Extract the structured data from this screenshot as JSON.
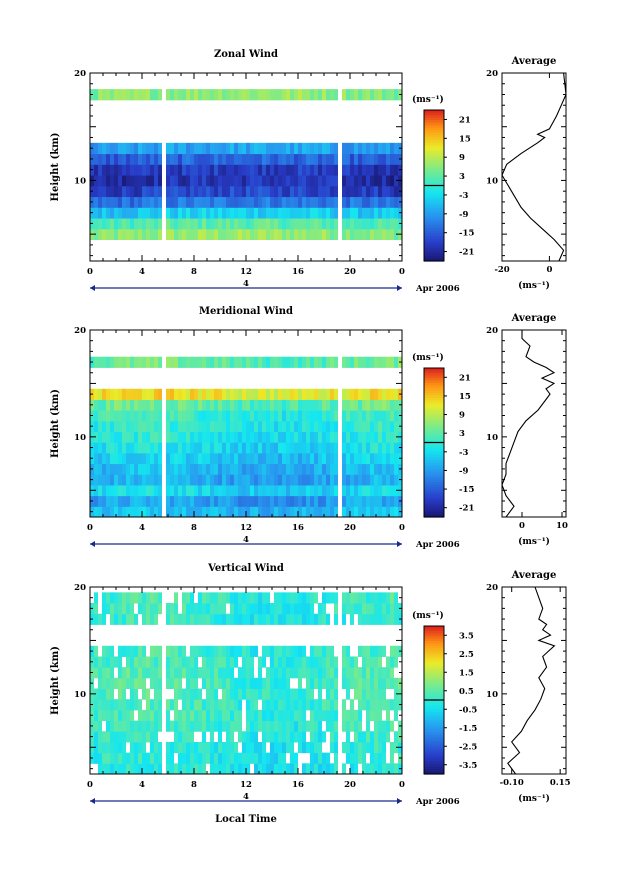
{
  "figure": {
    "xlabel": "Local Time",
    "date_label": "Apr 2006",
    "day_label": "4"
  },
  "panels": [
    {
      "title": "Zonal Wind",
      "ylabel": "Height (km)",
      "yticks": [
        "20",
        "10"
      ],
      "xticks": [
        "0",
        "4",
        "8",
        "12",
        "16",
        "20",
        "0"
      ],
      "cb_unit": "(ms⁻¹)",
      "cb_ticks": [
        "21",
        "15",
        "9",
        "3",
        "-3",
        "-9",
        "-15",
        "-21"
      ],
      "avg_title": "Average",
      "avg_yticks": [
        "20",
        "10"
      ],
      "avg_xticks": [
        "-20",
        "0"
      ],
      "avg_unit": "(ms⁻¹)"
    },
    {
      "title": "Meridional Wind",
      "ylabel": "Height (km)",
      "yticks": [
        "20",
        "10"
      ],
      "xticks": [
        "0",
        "4",
        "8",
        "12",
        "16",
        "20",
        "0"
      ],
      "cb_unit": "(ms⁻¹)",
      "cb_ticks": [
        "21",
        "15",
        "9",
        "3",
        "-3",
        "-9",
        "-15",
        "-21"
      ],
      "avg_title": "Average",
      "avg_yticks": [
        "20",
        "10"
      ],
      "avg_xticks": [
        "0",
        "10"
      ],
      "avg_unit": "(ms⁻¹)"
    },
    {
      "title": "Vertical Wind",
      "ylabel": "Height (km)",
      "yticks": [
        "20",
        "10"
      ],
      "xticks": [
        "0",
        "4",
        "8",
        "12",
        "16",
        "20",
        "0"
      ],
      "cb_unit": "(ms⁻¹)",
      "cb_ticks": [
        "3.5",
        "2.5",
        "1.5",
        "0.5",
        "-0.5",
        "-1.5",
        "-2.5",
        "-3.5"
      ],
      "avg_title": "Average",
      "avg_yticks": [
        "20",
        "10"
      ],
      "avg_xticks": [
        "-0.10",
        "0.15"
      ],
      "avg_unit": "(ms⁻¹)"
    }
  ],
  "chart_data": [
    {
      "type": "heatmap",
      "title": "Zonal Wind",
      "ylabel": "Height (km)",
      "x_unit": "hours local time",
      "xlim": [
        0,
        24
      ],
      "ylim": [
        2.5,
        20
      ],
      "colorbar_range": [
        -24,
        24
      ],
      "rows_height_km": [
        5,
        6,
        7,
        8,
        9,
        10,
        11,
        12,
        13,
        14,
        15,
        16,
        17,
        18
      ],
      "row_values_ms": [
        5,
        1,
        -6,
        -14,
        -19,
        -21,
        -20,
        -16,
        -10,
        null,
        null,
        null,
        null,
        5
      ],
      "gaps_hours": [
        [
          5.5,
          5.7
        ],
        [
          17.9,
          18.1
        ],
        [
          18.9,
          19.1
        ]
      ]
    },
    {
      "type": "line",
      "title": "Average",
      "x_unit": "ms-1",
      "xlim": [
        -20,
        7
      ],
      "ylim": [
        2.5,
        20
      ],
      "x": [
        4,
        5,
        6,
        2,
        -3,
        -8,
        -12,
        -16,
        -20,
        -18,
        -12,
        -5,
        -2,
        -5,
        0,
        3,
        5,
        7,
        6
      ],
      "y": [
        2.5,
        3.0,
        3.5,
        4.5,
        5.5,
        6.5,
        7.5,
        9,
        10.5,
        11.5,
        12.5,
        13.5,
        14,
        14.3,
        14.8,
        16,
        17,
        18,
        20
      ]
    },
    {
      "type": "heatmap",
      "title": "Meridional Wind",
      "ylabel": "Height (km)",
      "x_unit": "hours local time",
      "xlim": [
        0,
        24
      ],
      "ylim": [
        2.5,
        20
      ],
      "colorbar_range": [
        -24,
        24
      ],
      "rows_height_km": [
        3,
        4,
        5,
        6,
        7,
        8,
        9,
        10,
        11,
        12,
        13,
        14,
        15,
        16,
        17
      ],
      "row_values_ms": [
        -6,
        -9,
        -4,
        -8,
        -7,
        -5,
        -3,
        -2,
        -1,
        0,
        3,
        12,
        null,
        null,
        3
      ],
      "gaps_hours": [
        [
          5.5,
          5.7
        ],
        [
          17.9,
          18.1
        ],
        [
          18.9,
          19.1
        ]
      ]
    },
    {
      "type": "line",
      "title": "Average",
      "x_unit": "ms-1",
      "xlim": [
        -5,
        11
      ],
      "ylim": [
        2.5,
        20
      ],
      "x": [
        -4,
        -2,
        -4,
        -5,
        -4,
        -4,
        -3,
        -2,
        -1,
        1,
        4,
        6,
        7,
        6,
        8,
        5,
        8,
        6,
        3,
        1,
        2,
        0,
        0
      ],
      "y": [
        2.5,
        3.5,
        4.5,
        5.5,
        6.5,
        7.5,
        8.5,
        9.5,
        10.5,
        11.5,
        12.5,
        13.5,
        14,
        14.5,
        15,
        15.5,
        16,
        16.5,
        17,
        17.5,
        18.5,
        19.2,
        20
      ]
    },
    {
      "type": "heatmap",
      "title": "Vertical Wind",
      "ylabel": "Height (km)",
      "x_unit": "hours local time",
      "xlim": [
        0,
        24
      ],
      "ylim": [
        2.5,
        20
      ],
      "colorbar_range": [
        -4,
        4
      ],
      "rows_height_km": [
        3,
        4,
        5,
        6,
        7,
        8,
        9,
        10,
        11,
        12,
        13,
        14,
        15,
        16,
        17,
        18,
        19
      ],
      "row_values_ms": [
        -0.3,
        -0.2,
        -0.2,
        -0.1,
        0,
        0.1,
        0.1,
        0.2,
        0.2,
        0.2,
        0.1,
        0,
        null,
        null,
        -0.1,
        0,
        0
      ],
      "gaps_hours": [
        [
          5.5,
          5.7
        ],
        [
          17.9,
          18.1
        ],
        [
          18.9,
          19.1
        ]
      ]
    },
    {
      "type": "line",
      "title": "Average",
      "x_unit": "ms-1",
      "xlim": [
        -0.15,
        0.18
      ],
      "ylim": [
        2.5,
        20
      ],
      "x": [
        -0.08,
        -0.12,
        -0.06,
        -0.1,
        -0.05,
        -0.02,
        0.02,
        0.05,
        0.07,
        0.04,
        0.08,
        0.06,
        0.09,
        0.12,
        0.04,
        0.1,
        0.06,
        0.08,
        0.04,
        0.06,
        0.02
      ],
      "y": [
        2.5,
        3.5,
        4.5,
        5.5,
        6.5,
        7.5,
        8.5,
        9.5,
        10.5,
        11.5,
        12.5,
        13.5,
        14,
        14.5,
        15,
        15.5,
        16,
        16.5,
        17,
        18,
        20
      ]
    }
  ]
}
